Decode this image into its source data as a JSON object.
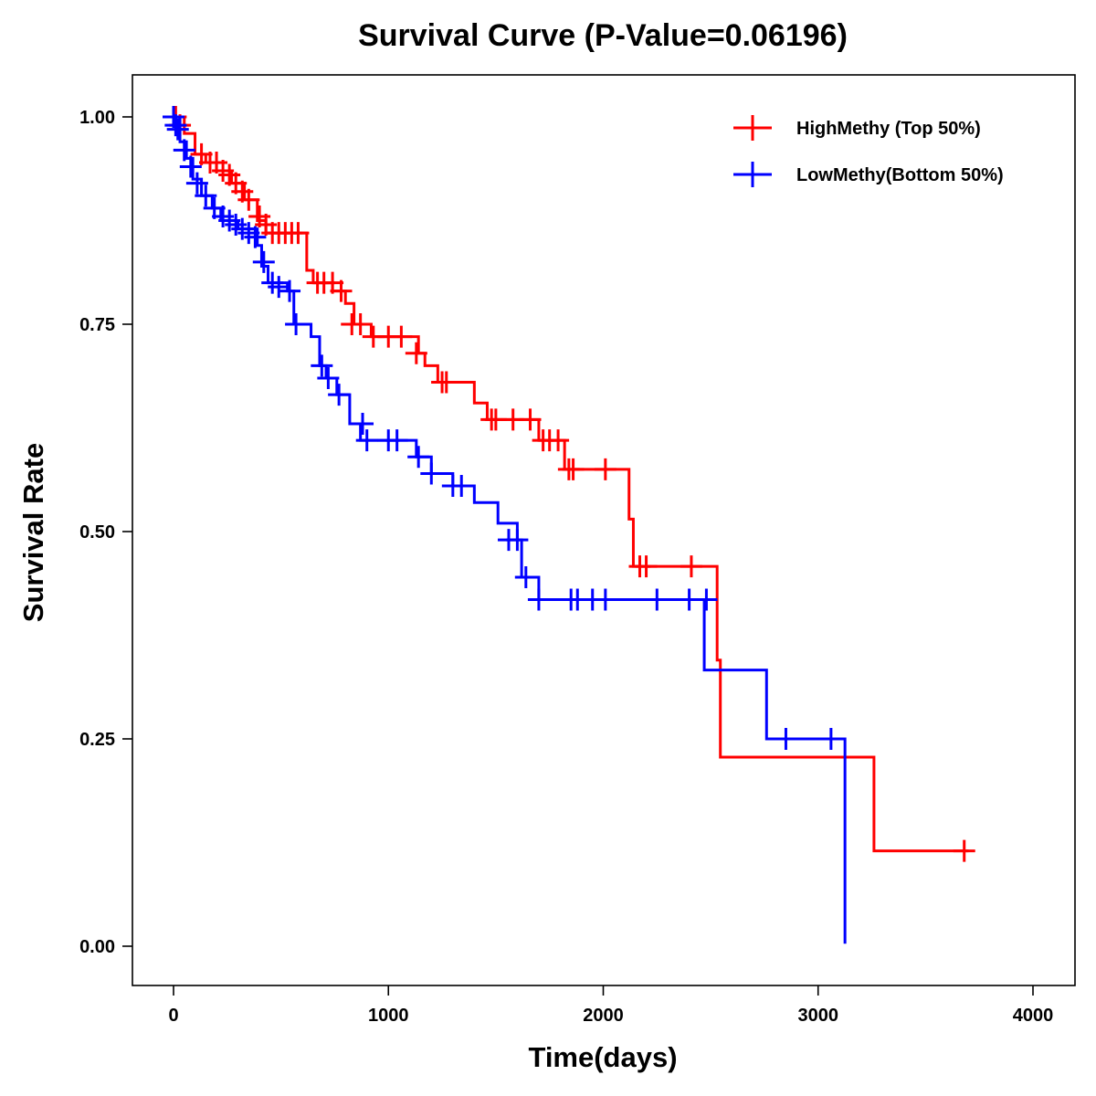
{
  "chart_data": {
    "type": "line",
    "subtype": "kaplan-meier",
    "title": "Survival Curve (P-Value=0.06196)",
    "xlabel": "Time(days)",
    "ylabel": "Survival Rate",
    "xlim": [
      -200,
      4200
    ],
    "ylim": [
      -0.05,
      1.05
    ],
    "xticks": [
      0,
      1000,
      2000,
      3000,
      4000
    ],
    "xtick_labels": [
      "0",
      "1000",
      "2000",
      "3000",
      "4000"
    ],
    "yticks": [
      0,
      0.25,
      0.5,
      0.75,
      1.0
    ],
    "ytick_labels": [
      "0.00",
      "0.25",
      "0.50",
      "0.75",
      "1.00"
    ],
    "legend_position": "top-right",
    "series": [
      {
        "name": "HighMethy (Top 50%)",
        "color": "#ff0000",
        "steps": [
          [
            0,
            1.0
          ],
          [
            50,
            0.98
          ],
          [
            100,
            0.955
          ],
          [
            150,
            0.945
          ],
          [
            200,
            0.935
          ],
          [
            270,
            0.92
          ],
          [
            330,
            0.9
          ],
          [
            390,
            0.875
          ],
          [
            430,
            0.86
          ],
          [
            500,
            0.86
          ],
          [
            620,
            0.815
          ],
          [
            650,
            0.8
          ],
          [
            740,
            0.79
          ],
          [
            800,
            0.775
          ],
          [
            840,
            0.75
          ],
          [
            920,
            0.735
          ],
          [
            1140,
            0.715
          ],
          [
            1170,
            0.7
          ],
          [
            1230,
            0.68
          ],
          [
            1320,
            0.68
          ],
          [
            1400,
            0.655
          ],
          [
            1460,
            0.635
          ],
          [
            1700,
            0.61
          ],
          [
            1820,
            0.575
          ],
          [
            2100,
            0.575
          ],
          [
            2120,
            0.515
          ],
          [
            2140,
            0.458
          ],
          [
            2530,
            0.345
          ],
          [
            2545,
            0.228
          ],
          [
            3260,
            0.115
          ],
          [
            3700,
            0.115
          ]
        ],
        "censored": [
          [
            10,
            1.0
          ],
          [
            30,
            0.99
          ],
          [
            130,
            0.955
          ],
          [
            170,
            0.945
          ],
          [
            200,
            0.945
          ],
          [
            230,
            0.935
          ],
          [
            260,
            0.93
          ],
          [
            290,
            0.92
          ],
          [
            320,
            0.91
          ],
          [
            350,
            0.9
          ],
          [
            400,
            0.88
          ],
          [
            430,
            0.87
          ],
          [
            460,
            0.86
          ],
          [
            490,
            0.86
          ],
          [
            520,
            0.86
          ],
          [
            550,
            0.86
          ],
          [
            580,
            0.86
          ],
          [
            670,
            0.8
          ],
          [
            700,
            0.8
          ],
          [
            740,
            0.8
          ],
          [
            780,
            0.79
          ],
          [
            830,
            0.75
          ],
          [
            870,
            0.75
          ],
          [
            930,
            0.735
          ],
          [
            1000,
            0.735
          ],
          [
            1060,
            0.735
          ],
          [
            1130,
            0.715
          ],
          [
            1250,
            0.68
          ],
          [
            1270,
            0.68
          ],
          [
            1480,
            0.635
          ],
          [
            1500,
            0.635
          ],
          [
            1580,
            0.635
          ],
          [
            1660,
            0.635
          ],
          [
            1720,
            0.61
          ],
          [
            1750,
            0.61
          ],
          [
            1790,
            0.61
          ],
          [
            1840,
            0.575
          ],
          [
            1860,
            0.575
          ],
          [
            2010,
            0.575
          ],
          [
            2170,
            0.458
          ],
          [
            2200,
            0.458
          ],
          [
            2410,
            0.458
          ],
          [
            3680,
            0.115
          ]
        ]
      },
      {
        "name": "LowMethy(Bottom 50%)",
        "color": "#0000ff",
        "steps": [
          [
            0,
            1.0
          ],
          [
            30,
            0.97
          ],
          [
            60,
            0.95
          ],
          [
            90,
            0.925
          ],
          [
            130,
            0.905
          ],
          [
            180,
            0.89
          ],
          [
            220,
            0.875
          ],
          [
            300,
            0.865
          ],
          [
            390,
            0.845
          ],
          [
            410,
            0.82
          ],
          [
            440,
            0.8
          ],
          [
            530,
            0.79
          ],
          [
            560,
            0.75
          ],
          [
            640,
            0.735
          ],
          [
            680,
            0.7
          ],
          [
            710,
            0.685
          ],
          [
            760,
            0.665
          ],
          [
            820,
            0.63
          ],
          [
            870,
            0.61
          ],
          [
            1130,
            0.59
          ],
          [
            1200,
            0.57
          ],
          [
            1300,
            0.555
          ],
          [
            1400,
            0.535
          ],
          [
            1510,
            0.51
          ],
          [
            1600,
            0.49
          ],
          [
            1620,
            0.445
          ],
          [
            1700,
            0.418
          ],
          [
            2460,
            0.418
          ],
          [
            2470,
            0.333
          ],
          [
            2760,
            0.25
          ],
          [
            3110,
            0.25
          ],
          [
            3125,
            0.003
          ]
        ],
        "censored": [
          [
            0,
            1.0
          ],
          [
            10,
            0.99
          ],
          [
            20,
            0.985
          ],
          [
            50,
            0.96
          ],
          [
            80,
            0.94
          ],
          [
            110,
            0.92
          ],
          [
            150,
            0.905
          ],
          [
            190,
            0.89
          ],
          [
            230,
            0.88
          ],
          [
            260,
            0.875
          ],
          [
            290,
            0.87
          ],
          [
            320,
            0.865
          ],
          [
            350,
            0.86
          ],
          [
            380,
            0.855
          ],
          [
            420,
            0.825
          ],
          [
            460,
            0.8
          ],
          [
            490,
            0.795
          ],
          [
            540,
            0.79
          ],
          [
            570,
            0.75
          ],
          [
            690,
            0.7
          ],
          [
            720,
            0.685
          ],
          [
            770,
            0.665
          ],
          [
            880,
            0.63
          ],
          [
            900,
            0.61
          ],
          [
            1000,
            0.61
          ],
          [
            1040,
            0.61
          ],
          [
            1140,
            0.59
          ],
          [
            1200,
            0.57
          ],
          [
            1300,
            0.555
          ],
          [
            1340,
            0.555
          ],
          [
            1560,
            0.49
          ],
          [
            1600,
            0.49
          ],
          [
            1640,
            0.445
          ],
          [
            1700,
            0.418
          ],
          [
            1850,
            0.418
          ],
          [
            1880,
            0.418
          ],
          [
            1950,
            0.418
          ],
          [
            2010,
            0.418
          ],
          [
            2250,
            0.418
          ],
          [
            2400,
            0.418
          ],
          [
            2480,
            0.418
          ],
          [
            2850,
            0.25
          ],
          [
            3060,
            0.25
          ]
        ]
      }
    ]
  }
}
